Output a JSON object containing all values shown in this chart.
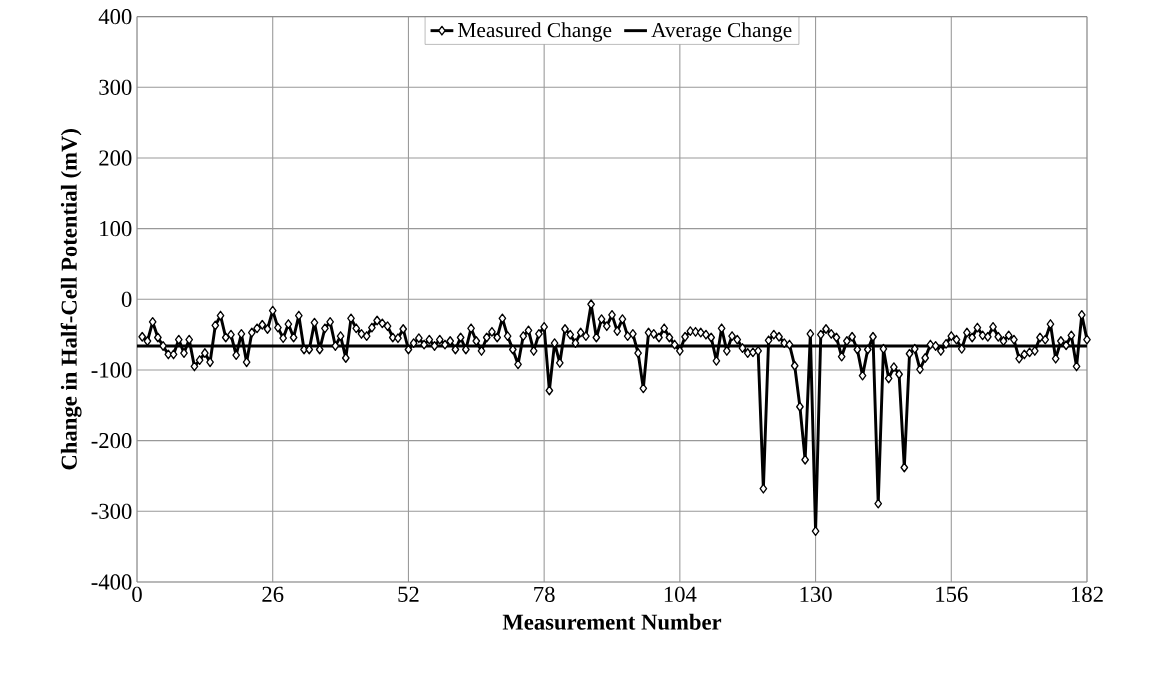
{
  "chart_data": {
    "type": "line",
    "xlabel": "Measurement Number",
    "ylabel": "Change in Half-Cell Potential (mV)",
    "xlim": [
      0,
      182
    ],
    "xticks": [
      0,
      26,
      52,
      78,
      104,
      130,
      156,
      182
    ],
    "ylim": [
      -400,
      400
    ],
    "yticks": [
      -400,
      -300,
      -200,
      -100,
      0,
      100,
      200,
      300,
      400
    ],
    "grid": true,
    "legend": "top",
    "series": [
      {
        "name": "Measured Change",
        "color": "#000000",
        "marker": "diamond",
        "line_style": "solid",
        "x": [
          1,
          2,
          3,
          4,
          5,
          6,
          7,
          8,
          9,
          10,
          11,
          12,
          13,
          14,
          15,
          16,
          17,
          18,
          19,
          20,
          21,
          22,
          23,
          24,
          25,
          26,
          27,
          28,
          29,
          30,
          31,
          32,
          33,
          34,
          35,
          36,
          37,
          38,
          39,
          40,
          41,
          42,
          43,
          44,
          45,
          46,
          47,
          48,
          49,
          50,
          51,
          52,
          53,
          54,
          55,
          56,
          57,
          58,
          59,
          60,
          61,
          62,
          63,
          64,
          65,
          66,
          67,
          68,
          69,
          70,
          71,
          72,
          73,
          74,
          75,
          76,
          77,
          78,
          79,
          80,
          81,
          82,
          83,
          84,
          85,
          86,
          87,
          88,
          89,
          90,
          91,
          92,
          93,
          94,
          95,
          96,
          97,
          98,
          99,
          100,
          101,
          102,
          103,
          104,
          105,
          106,
          107,
          108,
          109,
          110,
          111,
          112,
          113,
          114,
          115,
          116,
          117,
          118,
          119,
          120,
          121,
          122,
          123,
          124,
          125,
          126,
          127,
          128,
          129,
          130,
          131,
          132,
          133,
          134,
          135,
          136,
          137,
          138,
          139,
          140,
          141,
          142,
          143,
          144,
          145,
          146,
          147,
          148,
          149,
          150,
          151,
          152,
          153,
          154,
          155,
          156,
          157,
          158,
          159,
          160,
          161,
          162,
          163,
          164,
          165,
          166,
          167,
          168,
          169,
          170,
          171,
          172,
          173,
          174,
          175,
          176,
          177,
          178,
          179,
          180,
          181,
          182
        ],
        "values": [
          -53,
          -59,
          -32,
          -54,
          -66,
          -78,
          -78,
          -57,
          -76,
          -57,
          -95,
          -86,
          -76,
          -89,
          -37,
          -23,
          -54,
          -50,
          -79,
          -49,
          -89,
          -47,
          -41,
          -36,
          -42,
          -16,
          -40,
          -55,
          -35,
          -54,
          -23,
          -71,
          -71,
          -33,
          -71,
          -41,
          -32,
          -66,
          -52,
          -83,
          -27,
          -41,
          -49,
          -52,
          -40,
          -30,
          -34,
          -38,
          -54,
          -55,
          -42,
          -71,
          -62,
          -55,
          -64,
          -57,
          -66,
          -57,
          -64,
          -59,
          -71,
          -54,
          -71,
          -41,
          -59,
          -73,
          -54,
          -46,
          -54,
          -27,
          -52,
          -71,
          -92,
          -52,
          -44,
          -73,
          -49,
          -39,
          -129,
          -62,
          -90,
          -42,
          -50,
          -62,
          -47,
          -52,
          -7,
          -54,
          -28,
          -38,
          -22,
          -45,
          -28,
          -52,
          -49,
          -76,
          -126,
          -47,
          -49,
          -54,
          -41,
          -54,
          -64,
          -73,
          -53,
          -45,
          -46,
          -47,
          -50,
          -54,
          -87,
          -41,
          -73,
          -52,
          -57,
          -69,
          -76,
          -75,
          -73,
          -268,
          -58,
          -50,
          -53,
          -62,
          -64,
          -94,
          -152,
          -227,
          -49,
          -328,
          -50,
          -42,
          -49,
          -54,
          -81,
          -59,
          -53,
          -71,
          -108,
          -71,
          -53,
          -289,
          -70,
          -112,
          -96,
          -106,
          -238,
          -77,
          -70,
          -99,
          -83,
          -64,
          -66,
          -73,
          -63,
          -52,
          -57,
          -70,
          -47,
          -54,
          -40,
          -51,
          -53,
          -39,
          -53,
          -59,
          -51,
          -57,
          -84,
          -78,
          -75,
          -73,
          -54,
          -57,
          -35,
          -84,
          -59,
          -65,
          -51,
          -95,
          -22,
          -57
        ]
      },
      {
        "name": "Average Change",
        "color": "#000000",
        "marker": "none",
        "line_style": "solid",
        "x": [
          0,
          182
        ],
        "values": [
          -66,
          -66
        ]
      }
    ]
  }
}
